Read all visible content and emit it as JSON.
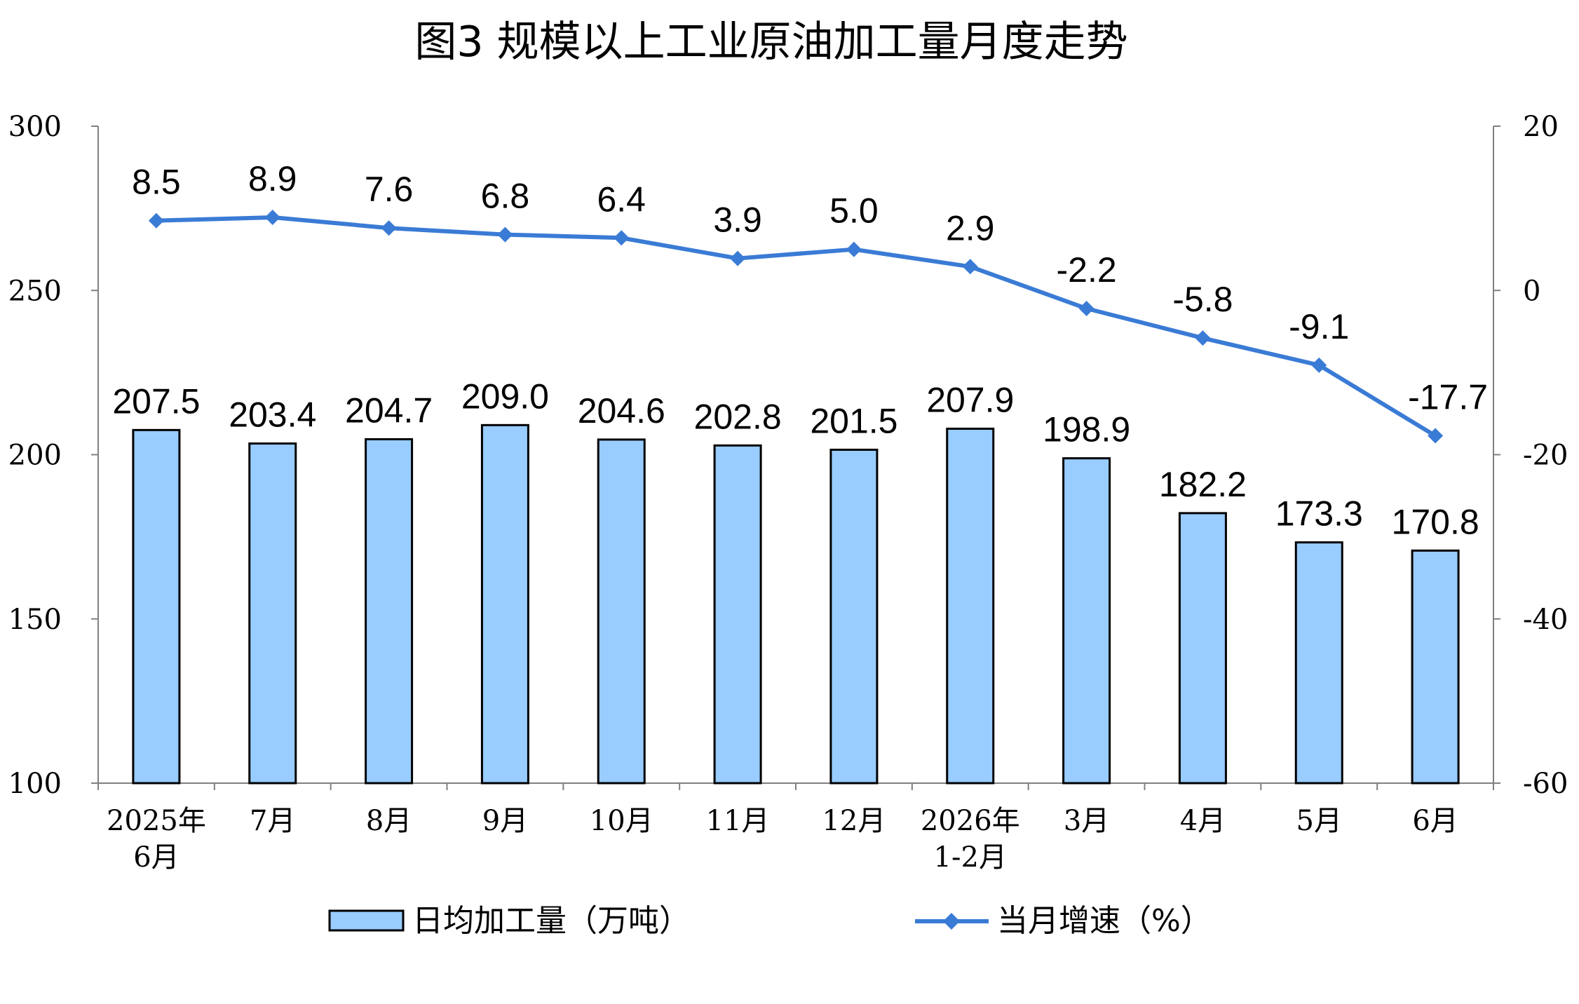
{
  "chart_data": {
    "type": "bar",
    "title": "图3  规模以上工业原油加工量月度走势",
    "categories": [
      [
        "2025年",
        "6月"
      ],
      [
        "7月"
      ],
      [
        "8月"
      ],
      [
        "9月"
      ],
      [
        "10月"
      ],
      [
        "11月"
      ],
      [
        "12月"
      ],
      [
        "2026年",
        "1-2月"
      ],
      [
        "3月"
      ],
      [
        "4月"
      ],
      [
        "5月"
      ],
      [
        "6月"
      ]
    ],
    "series": [
      {
        "name": "日均加工量（万吨）",
        "type": "bar",
        "axis": "left",
        "color": "#99CCFF",
        "values": [
          207.5,
          203.4,
          204.7,
          209.0,
          204.6,
          202.8,
          201.5,
          207.9,
          198.9,
          182.2,
          173.3,
          170.8
        ],
        "labels": [
          "207.5",
          "203.4",
          "204.7",
          "209.0",
          "204.6",
          "202.8",
          "201.5",
          "207.9",
          "198.9",
          "182.2",
          "173.3",
          "170.8"
        ]
      },
      {
        "name": "当月增速（%）",
        "type": "line",
        "axis": "right",
        "color": "#3A7BD5",
        "marker": "diamond",
        "values": [
          8.5,
          8.9,
          7.6,
          6.8,
          6.4,
          3.9,
          5.0,
          2.9,
          -2.2,
          -5.8,
          -9.1,
          -17.7
        ],
        "labels": [
          "8.5",
          "8.9",
          "7.6",
          "6.8",
          "6.4",
          "3.9",
          "5.0",
          "2.9",
          "-2.2",
          "-5.8",
          "-9.1",
          "-17.7"
        ]
      }
    ],
    "y_left": {
      "lim": [
        100,
        300
      ],
      "ticks": [
        "100",
        "150",
        "200",
        "250",
        "300"
      ]
    },
    "y_right": {
      "lim": [
        -60,
        20
      ],
      "ticks": [
        "-60",
        "-40",
        "-20",
        "0",
        "20"
      ]
    },
    "grid": false,
    "legend_position": "bottom"
  }
}
